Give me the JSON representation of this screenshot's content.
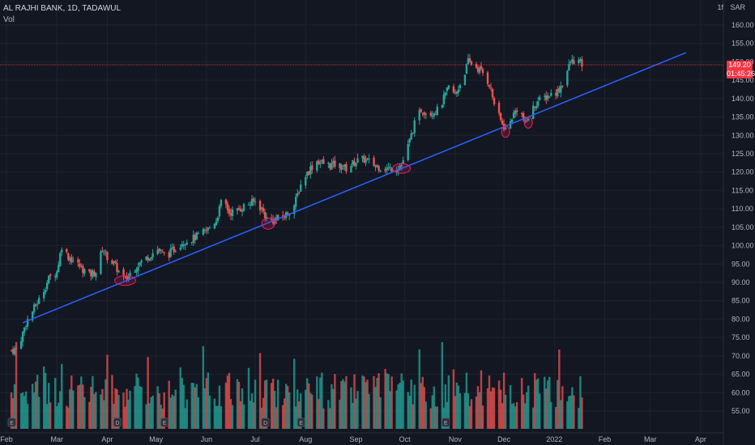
{
  "header": {
    "symbol_line": "AL RAJHI BANK, 1D, TADAWUL",
    "indicator": "Vol"
  },
  "top_right": {
    "currency_icon": "1f",
    "currency": "SAR"
  },
  "last_price": {
    "value": "149.20",
    "countdown": "01:45:26"
  },
  "colors": {
    "background": "#131722",
    "grid": "#1f2330",
    "up": "#26a69a",
    "down": "#ef5350",
    "trendline": "#2962ff",
    "circle": "#e91e63",
    "axis_text": "#b2b5be",
    "price_line": "#f23645"
  },
  "chart_data": {
    "type": "candlestick",
    "title": "AL RAJHI BANK, 1D, TADAWUL",
    "y_axis": {
      "ticks": [
        "160.00",
        "155.00",
        "150.00",
        "145.00",
        "140.00",
        "135.00",
        "130.00",
        "125.00",
        "120.00",
        "115.00",
        "110.00",
        "105.00",
        "100.00",
        "95.00",
        "90.00",
        "85.00",
        "80.00",
        "75.00",
        "70.00",
        "65.00",
        "60.00",
        "55.00"
      ],
      "range": [
        47,
        165
      ]
    },
    "x_axis": {
      "ticks": [
        "Feb",
        "Mar",
        "Apr",
        "May",
        "Jun",
        "Jul",
        "Aug",
        "Sep",
        "Oct",
        "Nov",
        "Dec",
        "2022",
        "Feb",
        "Mar",
        "Apr"
      ]
    },
    "price_path": [
      [
        "2021-02-01",
        71.5
      ],
      [
        "2021-02-05",
        72
      ],
      [
        "2021-02-10",
        79
      ],
      [
        "2021-02-15",
        83
      ],
      [
        "2021-02-19",
        86
      ],
      [
        "2021-02-24",
        91
      ],
      [
        "2021-03-01",
        93
      ],
      [
        "2021-03-04",
        100
      ],
      [
        "2021-03-08",
        97
      ],
      [
        "2021-03-11",
        96
      ],
      [
        "2021-03-16",
        94
      ],
      [
        "2021-03-21",
        92
      ],
      [
        "2021-03-25",
        93
      ],
      [
        "2021-03-29",
        99
      ],
      [
        "2021-04-01",
        97
      ],
      [
        "2021-04-05",
        95
      ],
      [
        "2021-04-08",
        93
      ],
      [
        "2021-04-12",
        90.5
      ],
      [
        "2021-04-15",
        92.5
      ],
      [
        "2021-04-20",
        95
      ],
      [
        "2021-04-26",
        97
      ],
      [
        "2021-05-02",
        99
      ],
      [
        "2021-05-07",
        97
      ],
      [
        "2021-05-12",
        99
      ],
      [
        "2021-05-17",
        101
      ],
      [
        "2021-05-24",
        102
      ],
      [
        "2021-06-01",
        104
      ],
      [
        "2021-06-07",
        107
      ],
      [
        "2021-06-11",
        113
      ],
      [
        "2021-06-15",
        109
      ],
      [
        "2021-06-20",
        109.5
      ],
      [
        "2021-06-25",
        111
      ],
      [
        "2021-07-01",
        112
      ],
      [
        "2021-07-05",
        110
      ],
      [
        "2021-07-09",
        106.5
      ],
      [
        "2021-07-13",
        107
      ],
      [
        "2021-07-19",
        108
      ],
      [
        "2021-07-25",
        111
      ],
      [
        "2021-07-30",
        118
      ],
      [
        "2021-08-04",
        121
      ],
      [
        "2021-08-08",
        123
      ],
      [
        "2021-08-14",
        122
      ],
      [
        "2021-08-20",
        122
      ],
      [
        "2021-08-26",
        121
      ],
      [
        "2021-09-01",
        123
      ],
      [
        "2021-09-06",
        123.5
      ],
      [
        "2021-09-12",
        122
      ],
      [
        "2021-09-18",
        121
      ],
      [
        "2021-09-24",
        121
      ],
      [
        "2021-09-29",
        122
      ],
      [
        "2021-10-03",
        127
      ],
      [
        "2021-10-07",
        133
      ],
      [
        "2021-10-11",
        137
      ],
      [
        "2021-10-16",
        136
      ],
      [
        "2021-10-22",
        137
      ],
      [
        "2021-10-28",
        143
      ],
      [
        "2021-11-01",
        141
      ],
      [
        "2021-11-06",
        146
      ],
      [
        "2021-11-09",
        150
      ],
      [
        "2021-11-13",
        149
      ],
      [
        "2021-11-18",
        147
      ],
      [
        "2021-11-22",
        144
      ],
      [
        "2021-11-26",
        137
      ],
      [
        "2021-11-30",
        133
      ],
      [
        "2021-12-03",
        131
      ],
      [
        "2021-12-06",
        135
      ],
      [
        "2021-12-10",
        138
      ],
      [
        "2021-12-14",
        133
      ],
      [
        "2021-12-17",
        136
      ],
      [
        "2021-12-21",
        139
      ],
      [
        "2021-12-25",
        140
      ],
      [
        "2021-12-29",
        141
      ],
      [
        "2022-01-03",
        142
      ],
      [
        "2022-01-07",
        145
      ],
      [
        "2022-01-11",
        150
      ],
      [
        "2022-01-15",
        150.5
      ],
      [
        "2022-01-18",
        149.2
      ]
    ],
    "last_price": 149.2,
    "trendline": {
      "start": [
        "2021-02-08",
        79
      ],
      "end": [
        "2022-03-23",
        152.5
      ]
    },
    "volume_axis_note": "Vol pane shares the lower chart region"
  }
}
